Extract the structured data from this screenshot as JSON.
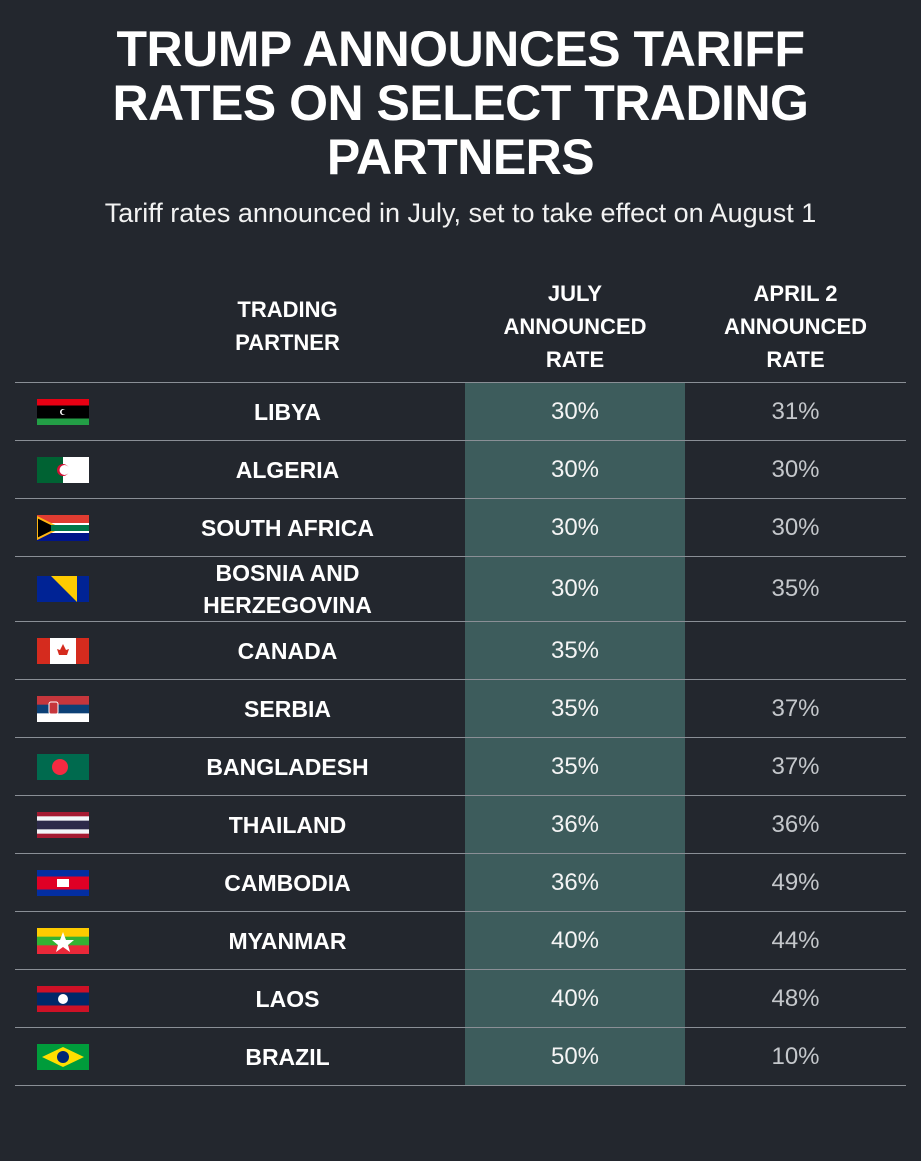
{
  "header": {
    "title": "TRUMP ANNOUNCES TARIFF RATES ON SELECT TRADING PARTNERS",
    "subtitle": "Tariff rates announced in July, set to take effect on August 1"
  },
  "table": {
    "columns": [
      "TRADING PARTNER",
      "JULY ANNOUNCED RATE",
      "APRIL 2 ANNOUNCED RATE"
    ],
    "rows": [
      [
        "LIBYA",
        "30%",
        "31%"
      ],
      [
        "ALGERIA",
        "30%",
        "30%"
      ],
      [
        "SOUTH AFRICA",
        "30%",
        "30%"
      ],
      [
        "BOSNIA AND HERZEGOVINA",
        "30%",
        "35%"
      ],
      [
        "CANADA",
        "35%",
        null
      ],
      [
        "SERBIA",
        "35%",
        "37%"
      ],
      [
        "BANGLADESH",
        "35%",
        "37%"
      ],
      [
        "THAILAND",
        "36%",
        "36%"
      ],
      [
        "CAMBODIA",
        "36%",
        "49%"
      ],
      [
        "MYANMAR",
        "40%",
        "44%"
      ],
      [
        "LAOS",
        "40%",
        "48%"
      ],
      [
        "BRAZIL",
        "50%",
        "10%"
      ]
    ]
  }
}
